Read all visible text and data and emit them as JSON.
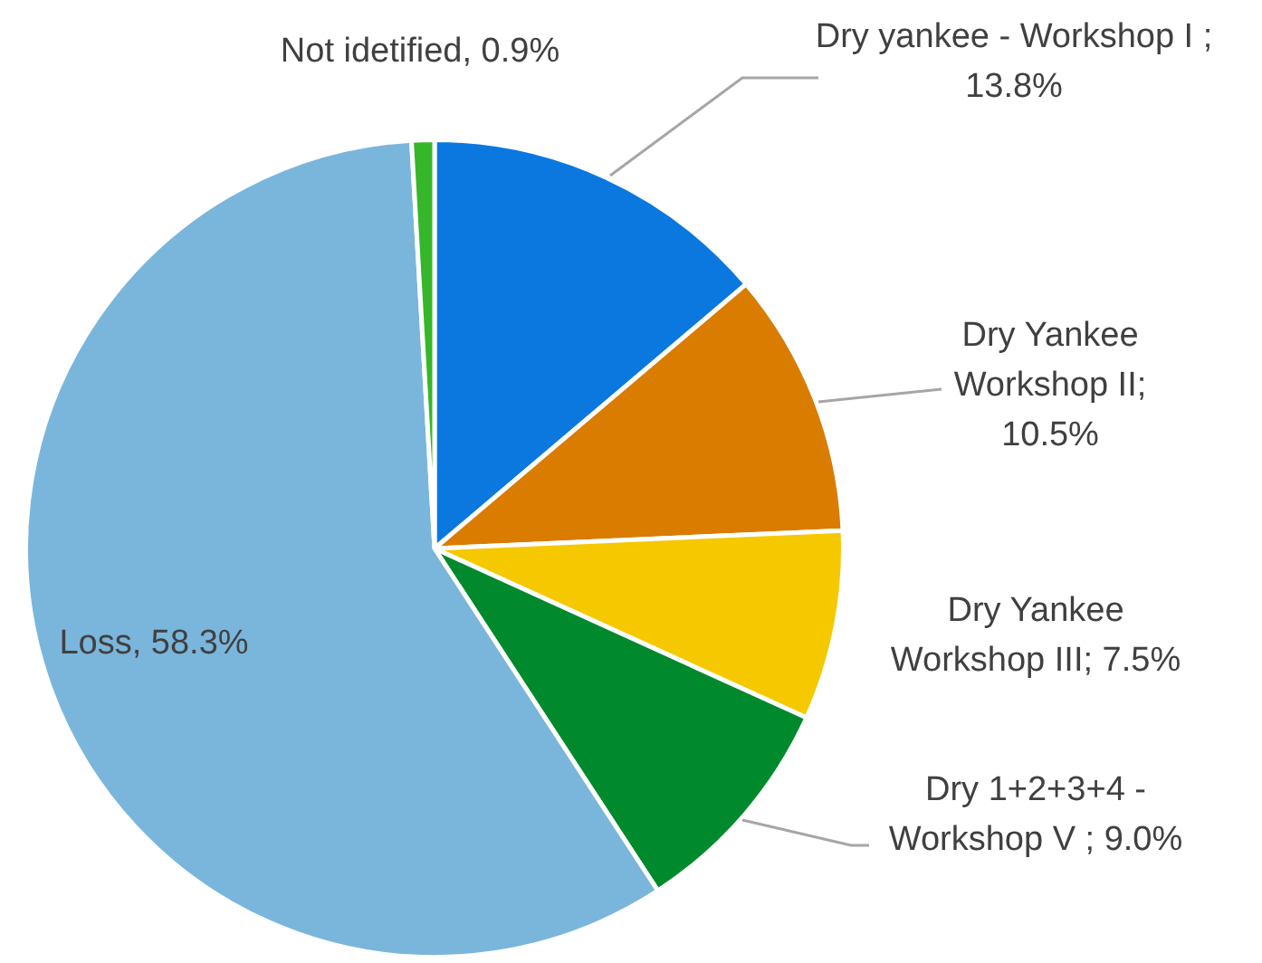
{
  "chart_data": {
    "type": "pie",
    "categories": [
      "Dry yankee - Workshop I",
      "Dry Yankee Workshop II",
      "Dry Yankee Workshop III",
      "Dry 1+2+3+4 - Workshop V",
      "Loss",
      "Not idetified"
    ],
    "values": [
      13.8,
      10.5,
      7.5,
      9.0,
      58.3,
      0.9
    ],
    "colors": [
      "#0a78de",
      "#d97c00",
      "#f5c800",
      "#00892d",
      "#7ab6dc",
      "#35b729"
    ],
    "value_labels": [
      " ; 13.8%",
      "; 10.5%",
      "; 7.5%",
      " ; 9.0%",
      ", 58.3%",
      ", 0.9%"
    ],
    "legend": false
  }
}
